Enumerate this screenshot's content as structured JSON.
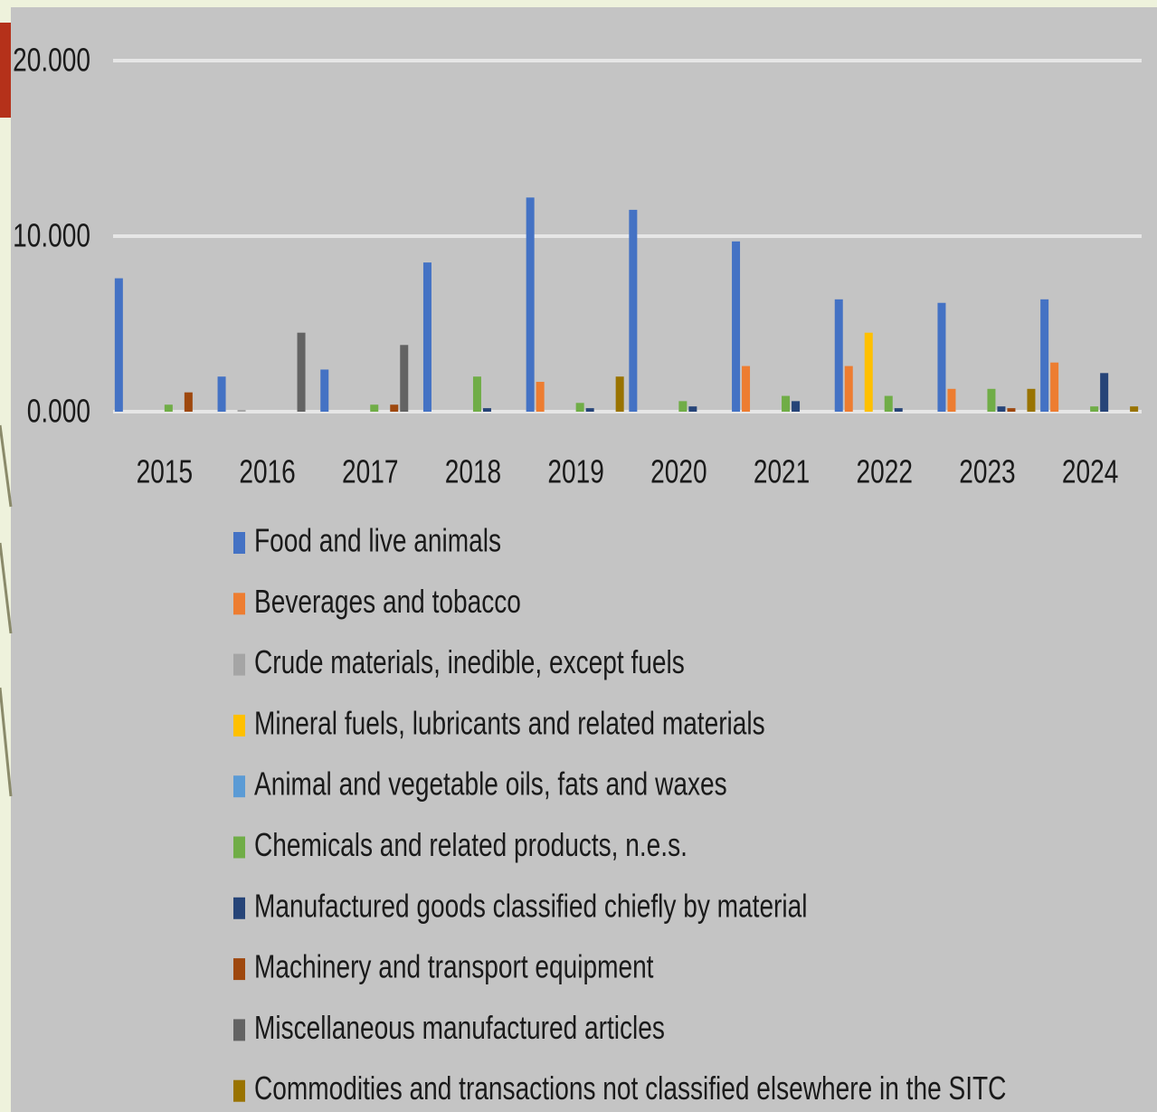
{
  "chart_data": {
    "type": "bar",
    "categories": [
      "2015",
      "2016",
      "2017",
      "2018",
      "2019",
      "2020",
      "2021",
      "2022",
      "2023",
      "2024"
    ],
    "series": [
      {
        "name": "Food and live animals",
        "color": "#4472c4",
        "values": [
          7.6,
          2.0,
          2.4,
          8.5,
          12.2,
          11.5,
          9.7,
          6.4,
          6.2,
          6.4
        ]
      },
      {
        "name": "Beverages and tobacco",
        "color": "#ed7d31",
        "values": [
          0,
          0,
          0,
          0,
          1.7,
          0,
          2.6,
          2.6,
          1.3,
          2.8
        ]
      },
      {
        "name": "Crude materials, inedible, except fuels",
        "color": "#a5a5a5",
        "values": [
          0,
          0.1,
          0,
          0,
          0,
          0,
          0,
          0,
          0,
          0
        ]
      },
      {
        "name": "Mineral fuels, lubricants and related materials",
        "color": "#ffc000",
        "values": [
          0,
          0,
          0,
          0,
          0,
          0,
          0,
          4.5,
          0,
          0
        ]
      },
      {
        "name": "Animal and vegetable oils, fats and waxes",
        "color": "#5b9bd5",
        "values": [
          0,
          0,
          0,
          0,
          0,
          0,
          0,
          0,
          0,
          0
        ]
      },
      {
        "name": "Chemicals and related products, n.e.s.",
        "color": "#70ad47",
        "values": [
          0.4,
          0,
          0.4,
          2.0,
          0.5,
          0.6,
          0.9,
          0.9,
          1.3,
          0.3
        ]
      },
      {
        "name": "Manufactured goods classified chiefly by material",
        "color": "#264478",
        "values": [
          0,
          0,
          0,
          0.2,
          0.2,
          0.3,
          0.6,
          0.2,
          0.3,
          2.2
        ]
      },
      {
        "name": "Machinery and transport equipment",
        "color": "#9e480e",
        "values": [
          1.1,
          0,
          0.4,
          0,
          0,
          0,
          0,
          0,
          0.2,
          0
        ]
      },
      {
        "name": "Miscellaneous manufactured articles",
        "color": "#636363",
        "values": [
          0,
          4.5,
          3.8,
          0,
          0,
          0,
          0,
          0,
          0,
          0
        ]
      },
      {
        "name": "Commodities and transactions not classified elsewhere in the SITC",
        "color": "#997300",
        "values": [
          0,
          0,
          0,
          0,
          2.0,
          0,
          0,
          0,
          1.3,
          0.3
        ]
      }
    ],
    "ylim": [
      0,
      20
    ],
    "yticks": [
      {
        "value": 0,
        "label": "0.000"
      },
      {
        "value": 10,
        "label": "10.000"
      },
      {
        "value": 20,
        "label": "20.000"
      }
    ],
    "grid": true,
    "legend": "bottom"
  }
}
